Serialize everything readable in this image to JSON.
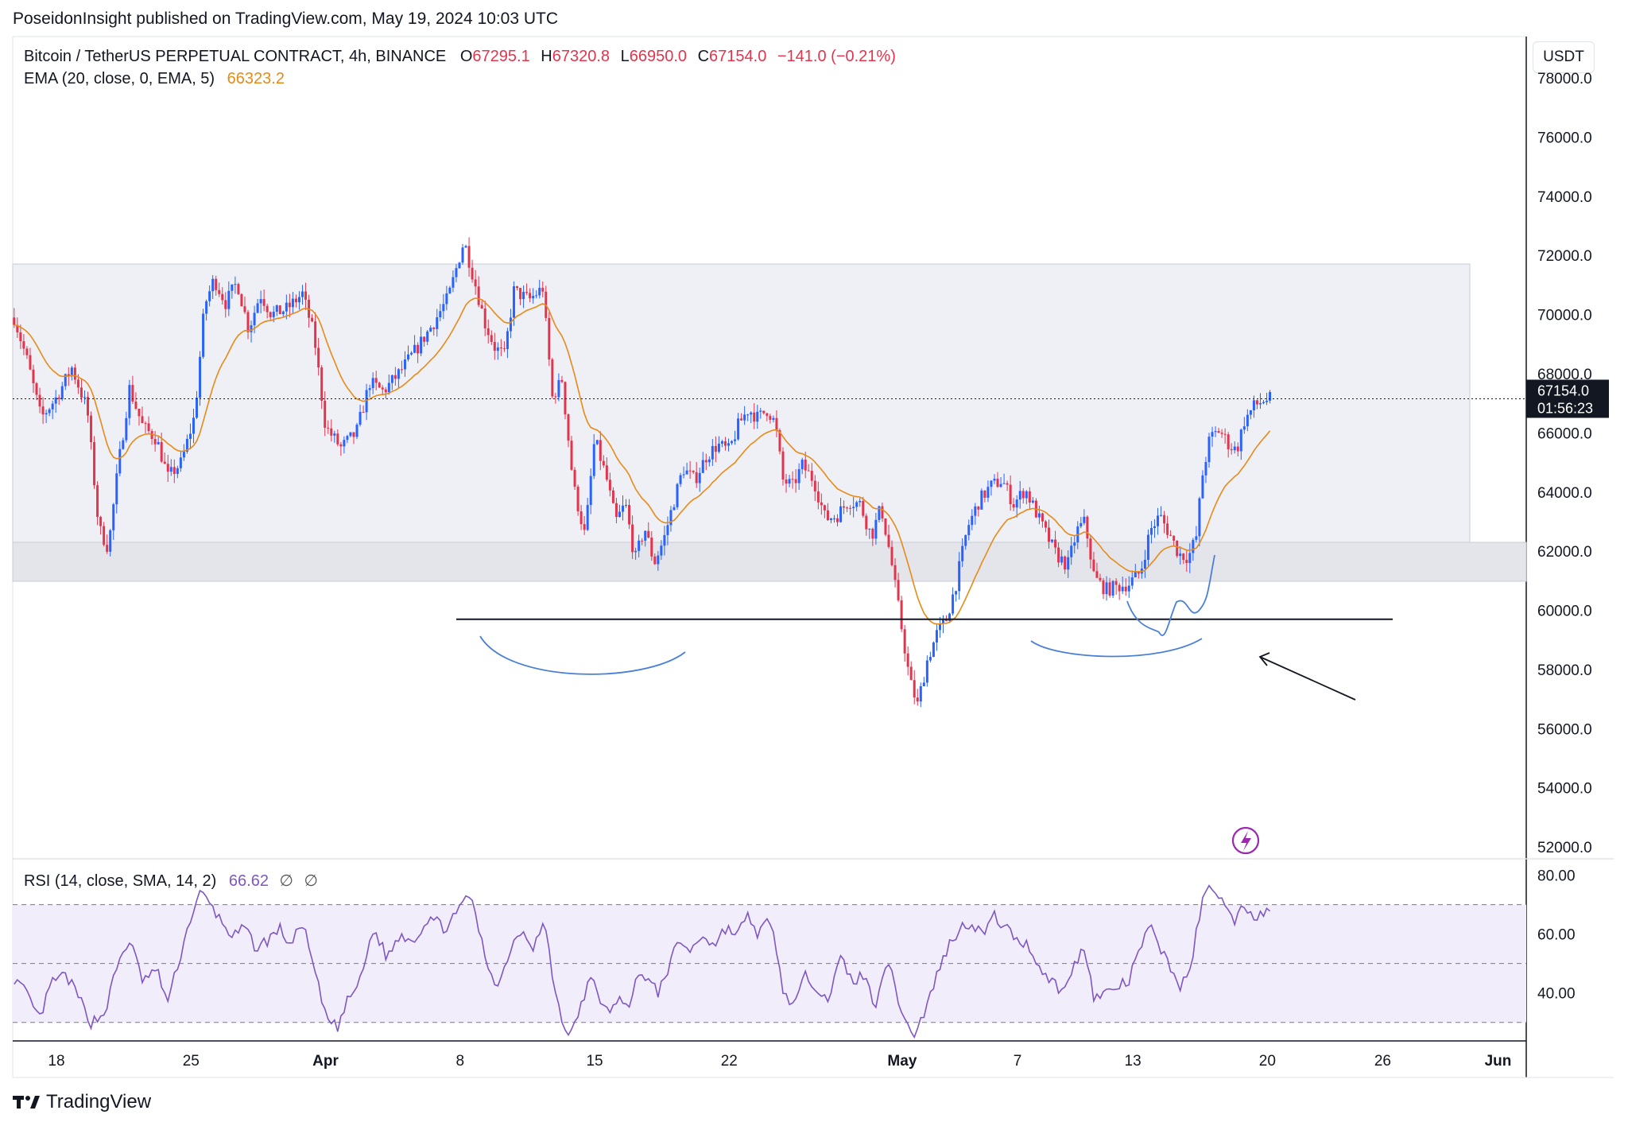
{
  "header": {
    "publisher": "PoseidonInsight published on TradingView.com, May 19, 2024 10:03 UTC"
  },
  "legend": {
    "symbol": "Bitcoin / TetherUS PERPETUAL CONTRACT, 4h, BINANCE",
    "o_label": "O",
    "o": "67295.1",
    "h_label": "H",
    "h": "67320.8",
    "l_label": "L",
    "l": "66950.0",
    "c_label": "C",
    "c": "67154.0",
    "change": "−141.0 (−0.21%)",
    "ema_label": "EMA (20, close, 0, EMA, 5)",
    "ema_value": "66323.2"
  },
  "rsi_legend": {
    "label": "RSI (14, close, SMA, 14, 2)",
    "value": "66.62",
    "sym1": "∅",
    "sym2": "∅"
  },
  "price_scale": {
    "currency": "USDT",
    "last_price": "67154.0",
    "countdown": "01:56:23"
  },
  "brand": {
    "name": "TradingView"
  },
  "colors": {
    "up": "#2962ff",
    "down": "#e2354d",
    "ema": "#e88a18",
    "rsi": "#7e57c2",
    "zone": "#eef0f5",
    "annotation": "#4a7fd8"
  },
  "chart_data": {
    "type": "line",
    "timeframe": "4h",
    "ylim": [
      51600,
      79400
    ],
    "y_ticks": [
      "78000.0",
      "76000.0",
      "74000.0",
      "72000.0",
      "70000.0",
      "68000.0",
      "66000.0",
      "64000.0",
      "62000.0",
      "60000.0",
      "58000.0",
      "56000.0",
      "54000.0",
      "52000.0"
    ],
    "x_ticks": [
      {
        "label": "18",
        "day": 0
      },
      {
        "label": "25",
        "day": 7
      },
      {
        "label": "Apr",
        "day": 14
      },
      {
        "label": "8",
        "day": 21
      },
      {
        "label": "15",
        "day": 28
      },
      {
        "label": "22",
        "day": 35
      },
      {
        "label": "May",
        "day": 44
      },
      {
        "label": "7",
        "day": 50
      },
      {
        "label": "13",
        "day": 56
      },
      {
        "label": "20",
        "day": 63
      },
      {
        "label": "26",
        "day": 69
      },
      {
        "label": "Jun",
        "day": 75
      }
    ],
    "price_keypoints": [
      [
        -2.2,
        69900
      ],
      [
        -1.5,
        68400
      ],
      [
        -0.8,
        66500
      ],
      [
        0,
        67200
      ],
      [
        0.8,
        68200
      ],
      [
        1.6,
        66800
      ],
      [
        2.2,
        62800
      ],
      [
        2.7,
        62100
      ],
      [
        3.2,
        64800
      ],
      [
        3.8,
        67500
      ],
      [
        4.5,
        66200
      ],
      [
        5.2,
        65800
      ],
      [
        5.8,
        64500
      ],
      [
        6.5,
        65000
      ],
      [
        7.2,
        66600
      ],
      [
        7.7,
        70300
      ],
      [
        8.2,
        71200
      ],
      [
        8.8,
        70400
      ],
      [
        9.4,
        71100
      ],
      [
        10,
        69500
      ],
      [
        10.6,
        70700
      ],
      [
        11.2,
        70000
      ],
      [
        12,
        70200
      ],
      [
        12.8,
        70700
      ],
      [
        13.4,
        69300
      ],
      [
        14,
        66200
      ],
      [
        14.8,
        65500
      ],
      [
        15.6,
        66000
      ],
      [
        16.3,
        67700
      ],
      [
        17,
        67400
      ],
      [
        17.8,
        68000
      ],
      [
        18.8,
        68900
      ],
      [
        19.6,
        69700
      ],
      [
        20.4,
        70600
      ],
      [
        21.2,
        72500
      ],
      [
        21.8,
        71000
      ],
      [
        22.3,
        69700
      ],
      [
        22.8,
        68900
      ],
      [
        23.3,
        68600
      ],
      [
        23.8,
        70800
      ],
      [
        24.6,
        70500
      ],
      [
        25.3,
        70900
      ],
      [
        25.8,
        67200
      ],
      [
        26.3,
        67800
      ],
      [
        26.9,
        64200
      ],
      [
        27.5,
        62500
      ],
      [
        28,
        65800
      ],
      [
        28.6,
        64500
      ],
      [
        29.1,
        63000
      ],
      [
        29.6,
        63600
      ],
      [
        30.1,
        61700
      ],
      [
        30.6,
        62800
      ],
      [
        31.1,
        61600
      ],
      [
        31.6,
        62400
      ],
      [
        32,
        63400
      ],
      [
        32.6,
        64800
      ],
      [
        33.2,
        64400
      ],
      [
        33.8,
        65200
      ],
      [
        34.4,
        65600
      ],
      [
        35,
        65400
      ],
      [
        35.5,
        66300
      ],
      [
        36,
        66800
      ],
      [
        36.5,
        66500
      ],
      [
        37,
        66800
      ],
      [
        37.4,
        66300
      ],
      [
        37.8,
        64400
      ],
      [
        38.3,
        64200
      ],
      [
        38.8,
        64900
      ],
      [
        39.4,
        64400
      ],
      [
        40,
        63100
      ],
      [
        40.6,
        63200
      ],
      [
        41.2,
        63700
      ],
      [
        41.8,
        63600
      ],
      [
        42.4,
        62500
      ],
      [
        42.9,
        63500
      ],
      [
        43.4,
        61800
      ],
      [
        43.9,
        59700
      ],
      [
        44.4,
        57600
      ],
      [
        44.8,
        56800
      ],
      [
        45.3,
        58300
      ],
      [
        45.8,
        59200
      ],
      [
        46.3,
        59700
      ],
      [
        46.8,
        60900
      ],
      [
        47.4,
        62800
      ],
      [
        48,
        63700
      ],
      [
        48.6,
        64200
      ],
      [
        49.2,
        64400
      ],
      [
        49.8,
        63600
      ],
      [
        50.4,
        64100
      ],
      [
        50.9,
        63400
      ],
      [
        51.4,
        62700
      ],
      [
        52,
        61900
      ],
      [
        52.6,
        61500
      ],
      [
        53.1,
        62700
      ],
      [
        53.5,
        63000
      ],
      [
        54,
        61100
      ],
      [
        54.6,
        60700
      ],
      [
        55.2,
        60800
      ],
      [
        55.8,
        60900
      ],
      [
        56.4,
        61300
      ],
      [
        56.9,
        62700
      ],
      [
        57.4,
        63200
      ],
      [
        57.9,
        62600
      ],
      [
        58.4,
        61900
      ],
      [
        58.9,
        61800
      ],
      [
        59.3,
        62500
      ],
      [
        59.6,
        64500
      ],
      [
        60,
        65800
      ],
      [
        60.5,
        66100
      ],
      [
        61,
        65600
      ],
      [
        61.4,
        65400
      ],
      [
        61.8,
        66400
      ],
      [
        62.3,
        66900
      ],
      [
        62.8,
        67100
      ],
      [
        63.2,
        67150
      ]
    ],
    "candle_seed": 7,
    "ema_period": 20,
    "ema_last": 66323.2,
    "last_price": 67154.0,
    "support_level": 59700,
    "rsi": {
      "ylim": [
        24,
        85
      ],
      "y_ticks": [
        "80.00",
        "60.00",
        "40.00"
      ],
      "bands": [
        70,
        50,
        30
      ],
      "last": 66.62,
      "keypoints": [
        [
          -2.2,
          45
        ],
        [
          -1.6,
          40
        ],
        [
          -0.9,
          31
        ],
        [
          -0.2,
          44
        ],
        [
          0.5,
          46
        ],
        [
          1.2,
          38
        ],
        [
          1.8,
          30
        ],
        [
          2.5,
          33
        ],
        [
          3.2,
          50
        ],
        [
          3.8,
          58
        ],
        [
          4.5,
          44
        ],
        [
          5.2,
          48
        ],
        [
          5.8,
          37
        ],
        [
          6.5,
          54
        ],
        [
          7,
          66
        ],
        [
          7.5,
          74
        ],
        [
          8,
          70
        ],
        [
          8.6,
          64
        ],
        [
          9.2,
          59
        ],
        [
          9.8,
          62
        ],
        [
          10.4,
          55
        ],
        [
          11,
          58
        ],
        [
          11.6,
          62
        ],
        [
          12.2,
          56
        ],
        [
          12.8,
          64
        ],
        [
          13.4,
          48
        ],
        [
          14,
          32
        ],
        [
          14.6,
          28
        ],
        [
          15.2,
          38
        ],
        [
          15.8,
          44
        ],
        [
          16.5,
          62
        ],
        [
          17.2,
          52
        ],
        [
          17.9,
          60
        ],
        [
          18.6,
          58
        ],
        [
          19.4,
          66
        ],
        [
          20.2,
          62
        ],
        [
          21,
          68
        ],
        [
          21.4,
          75
        ],
        [
          21.8,
          66
        ],
        [
          22.4,
          50
        ],
        [
          23,
          42
        ],
        [
          23.6,
          55
        ],
        [
          24.2,
          62
        ],
        [
          24.8,
          56
        ],
        [
          25.4,
          64
        ],
        [
          25.8,
          46
        ],
        [
          26.3,
          30
        ],
        [
          26.8,
          26
        ],
        [
          27.3,
          36
        ],
        [
          27.8,
          45
        ],
        [
          28.3,
          38
        ],
        [
          28.8,
          32
        ],
        [
          29.3,
          40
        ],
        [
          29.8,
          34
        ],
        [
          30.3,
          48
        ],
        [
          30.8,
          44
        ],
        [
          31.3,
          40
        ],
        [
          31.8,
          48
        ],
        [
          32.4,
          58
        ],
        [
          33,
          54
        ],
        [
          33.6,
          60
        ],
        [
          34.2,
          56
        ],
        [
          34.8,
          62
        ],
        [
          35.4,
          60
        ],
        [
          36,
          66
        ],
        [
          36.5,
          60
        ],
        [
          37,
          64
        ],
        [
          37.4,
          58
        ],
        [
          37.8,
          40
        ],
        [
          38.4,
          36
        ],
        [
          39,
          46
        ],
        [
          39.6,
          42
        ],
        [
          40.2,
          38
        ],
        [
          40.8,
          52
        ],
        [
          41.4,
          44
        ],
        [
          42,
          46
        ],
        [
          42.6,
          36
        ],
        [
          43.2,
          52
        ],
        [
          43.7,
          40
        ],
        [
          44.2,
          30
        ],
        [
          44.6,
          25
        ],
        [
          45.2,
          34
        ],
        [
          45.8,
          46
        ],
        [
          46.4,
          56
        ],
        [
          47,
          62
        ],
        [
          47.6,
          64
        ],
        [
          48.2,
          60
        ],
        [
          48.8,
          66
        ],
        [
          49.4,
          62
        ],
        [
          50,
          58
        ],
        [
          50.6,
          56
        ],
        [
          51.2,
          48
        ],
        [
          51.8,
          44
        ],
        [
          52.4,
          40
        ],
        [
          53,
          50
        ],
        [
          53.5,
          56
        ],
        [
          54,
          38
        ],
        [
          54.6,
          40
        ],
        [
          55.2,
          42
        ],
        [
          55.8,
          44
        ],
        [
          56.4,
          56
        ],
        [
          56.9,
          62
        ],
        [
          57.4,
          56
        ],
        [
          58,
          48
        ],
        [
          58.5,
          42
        ],
        [
          59,
          48
        ],
        [
          59.5,
          68
        ],
        [
          60,
          78
        ],
        [
          60.6,
          72
        ],
        [
          61.2,
          64
        ],
        [
          61.8,
          70
        ],
        [
          62.4,
          66
        ],
        [
          63,
          68
        ],
        [
          63.2,
          66.62
        ]
      ]
    }
  }
}
